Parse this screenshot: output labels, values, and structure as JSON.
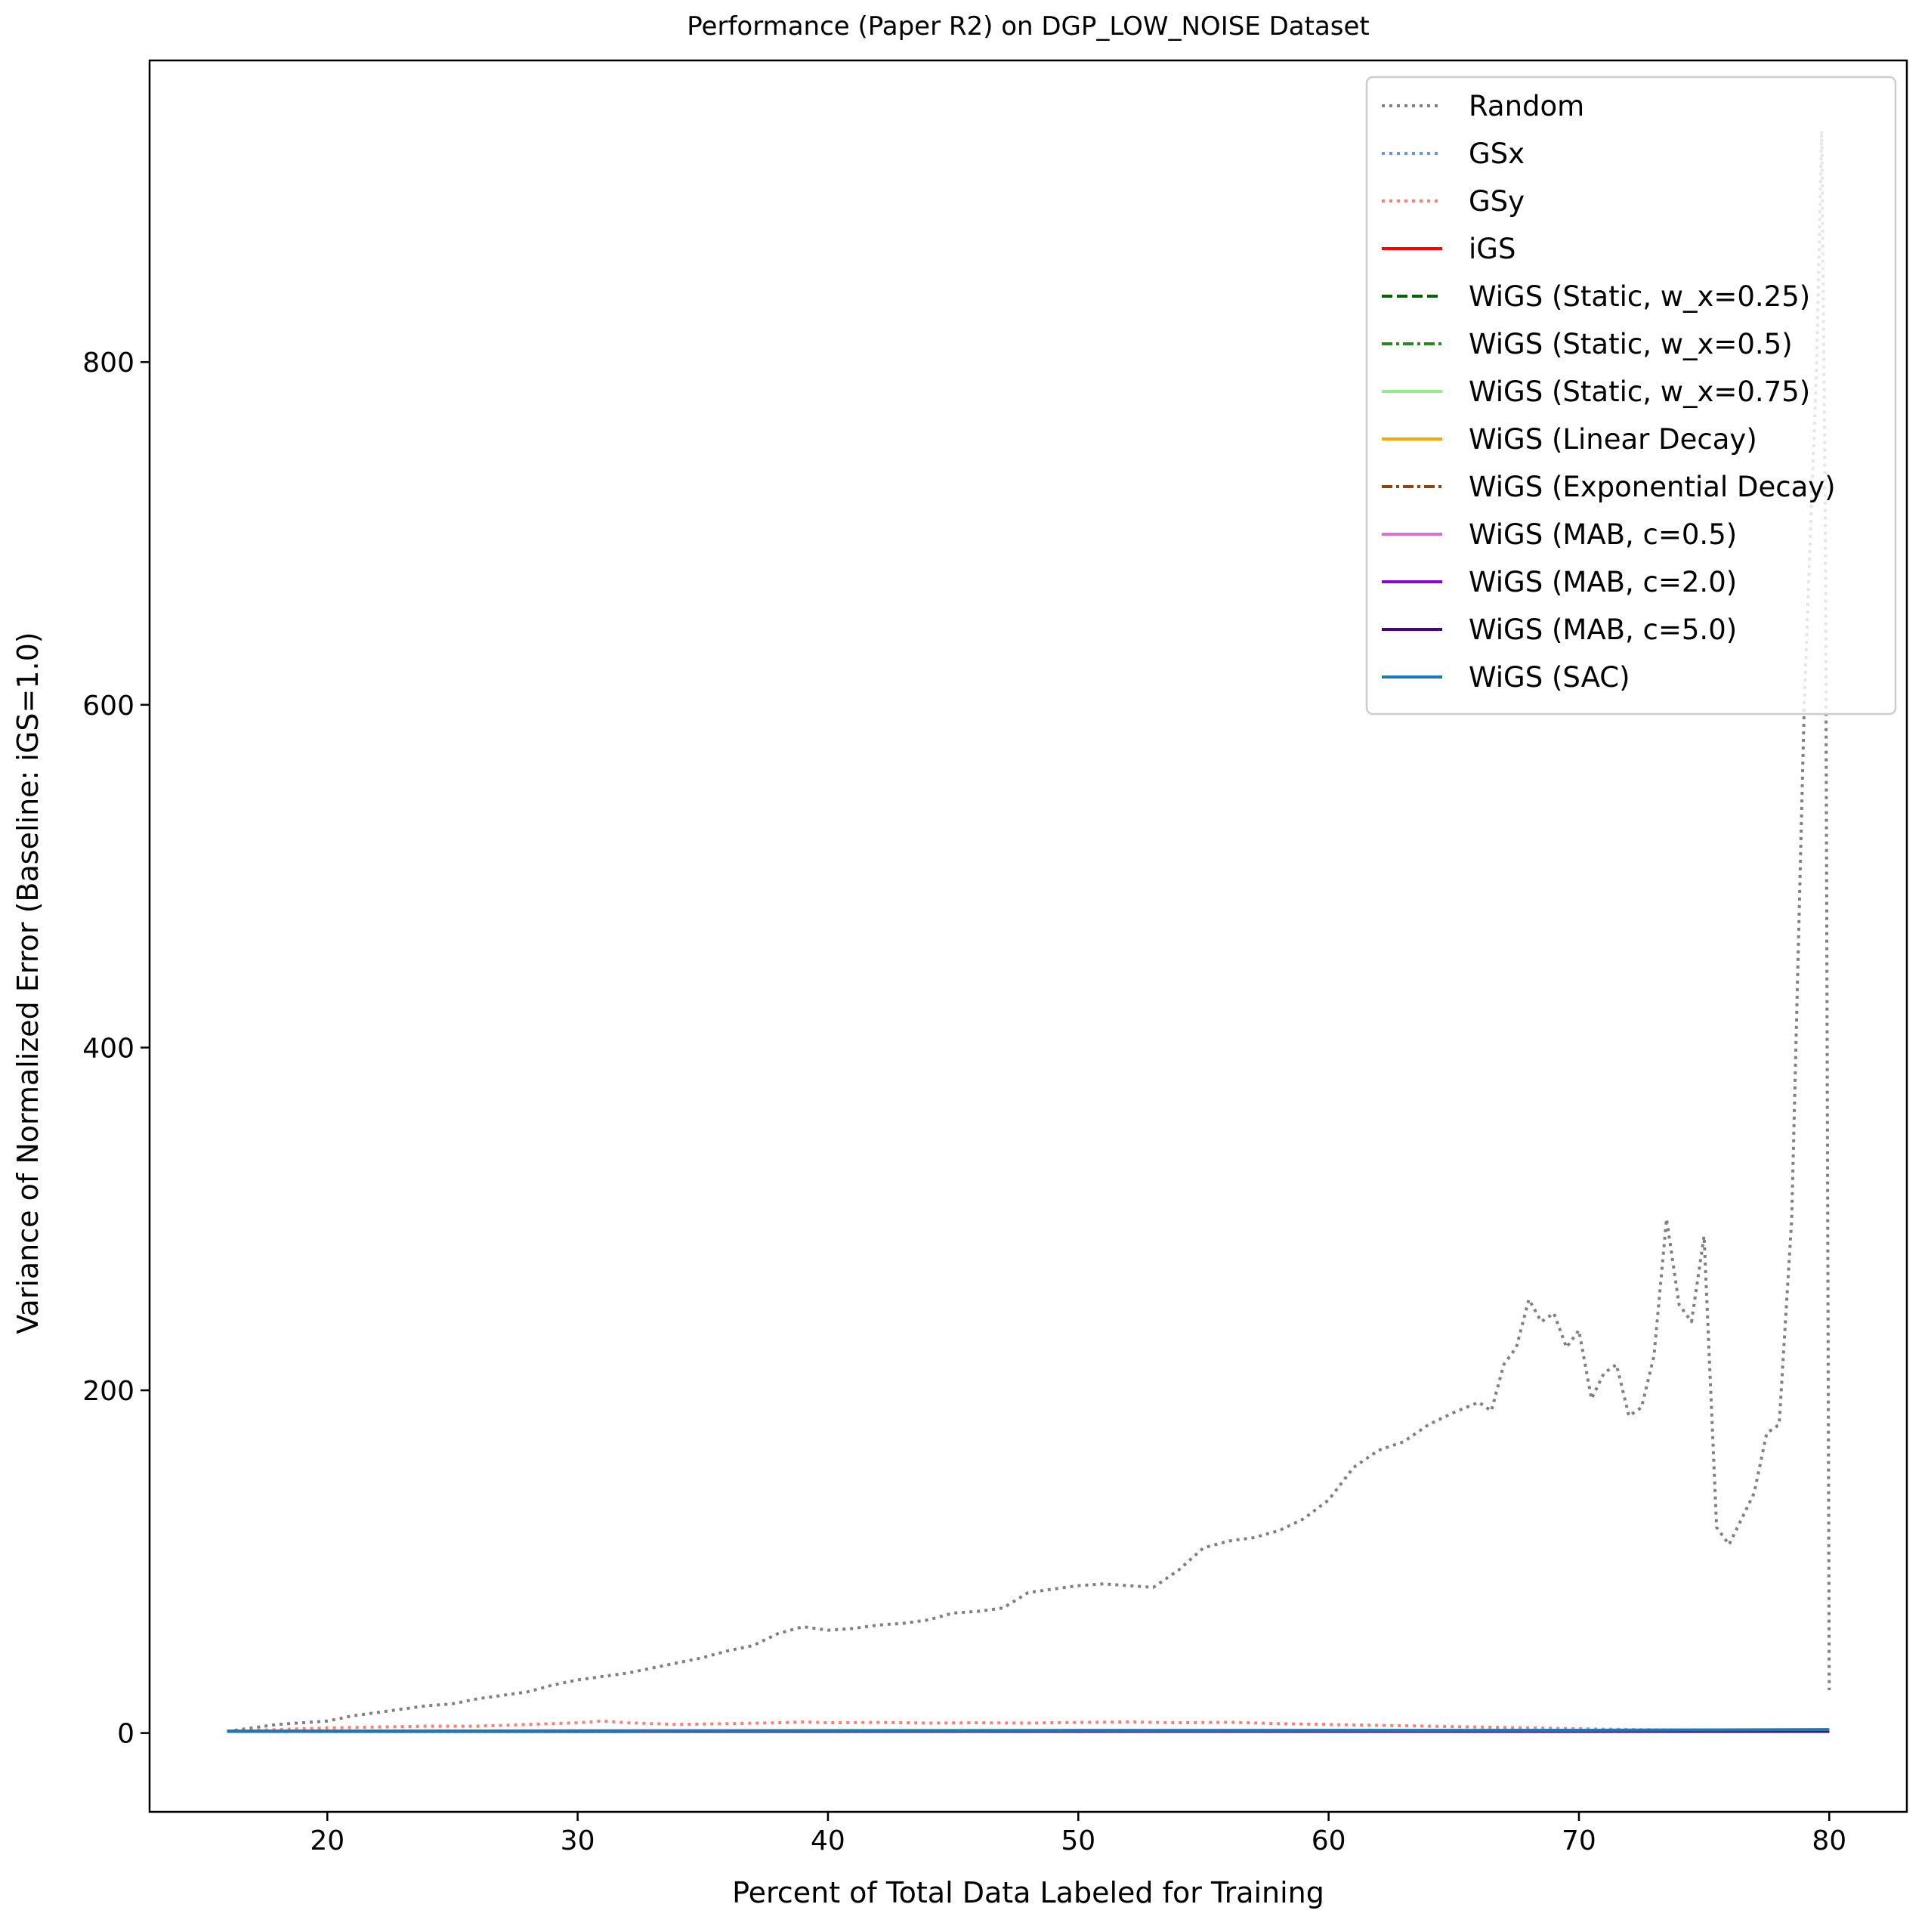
{
  "chart_data": {
    "type": "line",
    "title": "Performance (Paper R2) on DGP_LOW_NOISE Dataset",
    "xlabel": "Percent of Total Data Labeled for Training",
    "ylabel": "Variance of Normalized Error (Baseline: iGS=1.0)",
    "xlim": [
      12.9,
      83.1
    ],
    "ylim": [
      -46,
      976
    ],
    "xticks": [
      20,
      30,
      40,
      50,
      60,
      70,
      80
    ],
    "yticks": [
      0,
      200,
      400,
      600,
      800
    ],
    "grid": false,
    "legend_position": "top-right",
    "series": [
      {
        "name": "Random",
        "color": "#808080",
        "style": "dotted",
        "x": [
          16,
          17,
          18,
          19,
          20,
          21,
          22,
          23,
          24,
          25,
          26,
          27,
          28,
          29,
          30,
          31,
          32,
          33,
          34,
          35,
          36,
          37,
          38,
          39,
          40,
          41,
          42,
          43,
          44,
          45,
          46,
          47,
          48,
          49,
          50,
          51,
          52,
          53,
          54,
          55,
          56,
          57,
          58,
          59,
          60,
          61,
          62,
          63,
          64,
          65,
          66,
          66.5,
          67,
          67.5,
          68,
          68.5,
          69,
          69.5,
          70,
          70.5,
          71,
          71.5,
          72,
          72.5,
          73,
          73.5,
          74,
          74.5,
          75,
          75.5,
          76,
          76.5,
          77,
          77.5,
          78,
          78.5,
          79,
          79.5,
          79.7,
          79.85,
          80
        ],
        "y": [
          1,
          3,
          5,
          6,
          7,
          10,
          12,
          14,
          16,
          17,
          20,
          22,
          24,
          28,
          31,
          33,
          35,
          38,
          41,
          44,
          48,
          51,
          58,
          62,
          60,
          61,
          63,
          64,
          66,
          70,
          71,
          73,
          82,
          84,
          86,
          87,
          86,
          85,
          95,
          108,
          112,
          114,
          118,
          125,
          136,
          155,
          165,
          170,
          180,
          187,
          193,
          188,
          215,
          225,
          253,
          240,
          245,
          225,
          235,
          195,
          210,
          215,
          185,
          190,
          220,
          300,
          250,
          240,
          290,
          120,
          110,
          125,
          140,
          175,
          180,
          300,
          600,
          800,
          935,
          700,
          25
        ]
      },
      {
        "name": "GSx",
        "color": "#6495ed",
        "style": "dotted",
        "x": [
          16,
          20,
          30,
          40,
          50,
          60,
          70,
          80
        ],
        "y": [
          1,
          0.9,
          0.9,
          1.0,
          1.0,
          1.0,
          0.9,
          1.0
        ]
      },
      {
        "name": "GSy",
        "color": "#fa8072",
        "style": "dotted",
        "x": [
          16,
          18,
          20,
          22,
          24,
          26,
          28,
          30,
          31,
          32,
          34,
          36,
          38,
          39,
          40,
          42,
          44,
          46,
          48,
          50,
          52,
          54,
          56,
          58,
          60,
          62,
          64,
          66,
          68,
          70,
          72,
          74,
          76,
          78,
          80
        ],
        "y": [
          1,
          2,
          3,
          3.5,
          4,
          4,
          5,
          6,
          7,
          6,
          5,
          5.5,
          6,
          6.5,
          6,
          6.2,
          5.8,
          6,
          5.8,
          6.2,
          6.5,
          6,
          6.3,
          5.5,
          5,
          4.5,
          4,
          3.5,
          3,
          2.5,
          2,
          1.8,
          1.5,
          1.2,
          1
        ]
      },
      {
        "name": "iGS",
        "color": "#ff0000",
        "style": "solid",
        "x": [
          16,
          80
        ],
        "y": [
          1,
          1
        ]
      },
      {
        "name": "WiGS (Static, w_x=0.25)",
        "color": "#006400",
        "style": "dashed",
        "x": [
          16,
          30,
          50,
          70,
          80
        ],
        "y": [
          1,
          1.1,
          1.2,
          1.1,
          1
        ]
      },
      {
        "name": "WiGS (Static, w_x=0.5)",
        "color": "#228b22",
        "style": "dashdot",
        "x": [
          16,
          30,
          50,
          70,
          80
        ],
        "y": [
          1,
          1.2,
          1.4,
          1.2,
          1.1
        ]
      },
      {
        "name": "WiGS (Static, w_x=0.75)",
        "color": "#90ee90",
        "style": "solid",
        "x": [
          16,
          30,
          50,
          70,
          80
        ],
        "y": [
          1,
          1.3,
          1.6,
          1.4,
          1.2
        ]
      },
      {
        "name": "WiGS (Linear Decay)",
        "color": "#ffa500",
        "style": "solid",
        "x": [
          16,
          30,
          50,
          70,
          80
        ],
        "y": [
          1,
          1.1,
          1.3,
          1.2,
          1.1
        ]
      },
      {
        "name": "WiGS (Exponential Decay)",
        "color": "#8b4513",
        "style": "dashdot",
        "x": [
          16,
          30,
          50,
          70,
          80
        ],
        "y": [
          1,
          1.0,
          1.1,
          1.0,
          1.0
        ]
      },
      {
        "name": "WiGS (MAB, c=0.5)",
        "color": "#da70d6",
        "style": "solid",
        "x": [
          16,
          30,
          50,
          70,
          80
        ],
        "y": [
          1,
          1.2,
          1.5,
          1.3,
          1.2
        ]
      },
      {
        "name": "WiGS (MAB, c=2.0)",
        "color": "#9400d3",
        "style": "solid",
        "x": [
          16,
          30,
          50,
          70,
          80
        ],
        "y": [
          1,
          1.1,
          1.3,
          1.2,
          1.1
        ]
      },
      {
        "name": "WiGS (MAB, c=5.0)",
        "color": "#4b0082",
        "style": "solid",
        "x": [
          16,
          30,
          50,
          70,
          80
        ],
        "y": [
          1,
          1.0,
          1.1,
          1.1,
          1.0
        ]
      },
      {
        "name": "WiGS (SAC)",
        "color": "#1f77b4",
        "style": "solid",
        "x": [
          16,
          30,
          50,
          70,
          80
        ],
        "y": [
          1,
          1.2,
          1.5,
          1.6,
          2
        ]
      }
    ]
  }
}
